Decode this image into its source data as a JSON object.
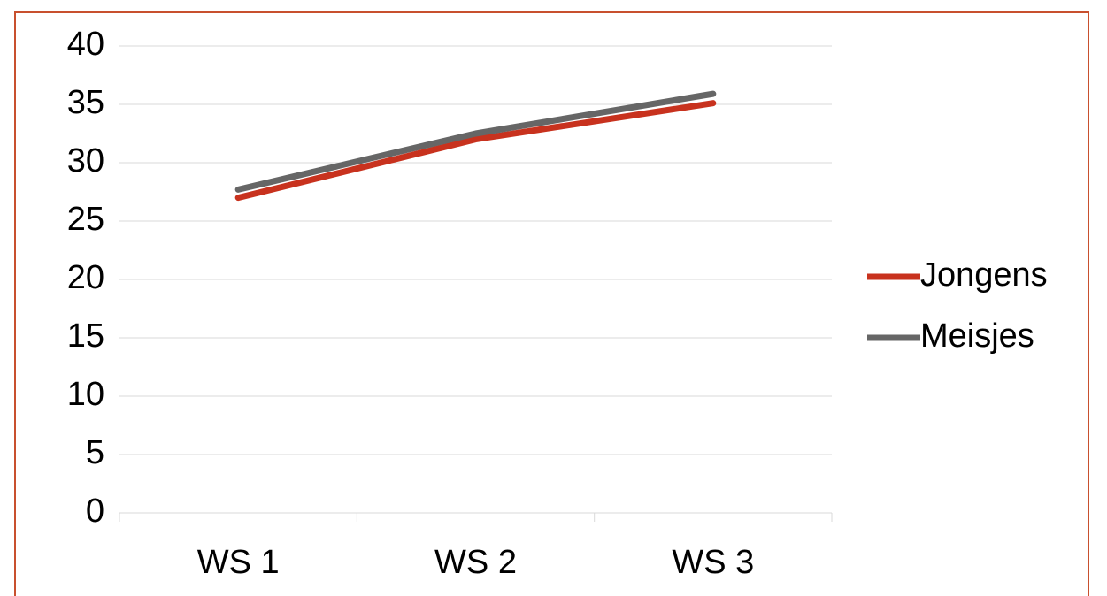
{
  "chart_data": {
    "type": "line",
    "categories": [
      "WS 1",
      "WS 2",
      "WS 3"
    ],
    "series": [
      {
        "name": "Jongens",
        "color": "#c8321e",
        "values": [
          27.0,
          32.0,
          35.1
        ]
      },
      {
        "name": "Meisjes",
        "color": "#666666",
        "values": [
          27.7,
          32.5,
          35.9
        ]
      }
    ],
    "ylim": [
      0,
      40
    ],
    "yticks": [
      0,
      5,
      10,
      15,
      20,
      25,
      30,
      35,
      40
    ],
    "grid": true,
    "legend": "right"
  }
}
